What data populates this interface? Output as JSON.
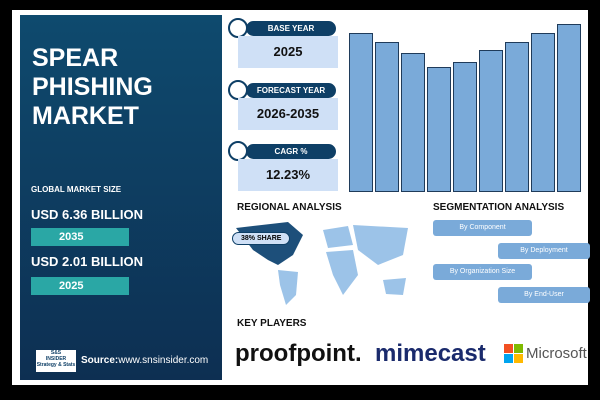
{
  "header": {
    "title_lines": [
      "SPEAR",
      "PHISHING",
      "MARKET"
    ]
  },
  "market_size": {
    "label": "GLOBAL MARKET SIZE",
    "forecast_value": "USD 6.36 BILLION",
    "forecast_year": "2035",
    "base_value": "USD 2.01 BILLION",
    "base_year": "2025"
  },
  "source": {
    "logo_text": [
      "S&S",
      "INSIDER",
      "Strategy & Stats"
    ],
    "label": "Source:",
    "url": "www.snsinsider.com"
  },
  "cards": [
    {
      "label": "BASE YEAR",
      "value": "2025"
    },
    {
      "label": "FORECAST YEAR",
      "value": "2026-2035"
    },
    {
      "label": "CAGR %",
      "value": "12.23%"
    }
  ],
  "regional": {
    "title": "REGIONAL ANALYSIS",
    "badge": "38% SHARE"
  },
  "segmentation": {
    "title": "SEGMENTATION ANALYSIS",
    "items": [
      "By Component",
      "By Deployment",
      "By Organization Size",
      "By End-User"
    ]
  },
  "key_players": {
    "title": "KEY PLAYERS",
    "companies": [
      "proofpoint.",
      "mimecast",
      "Microsoft"
    ]
  }
}
